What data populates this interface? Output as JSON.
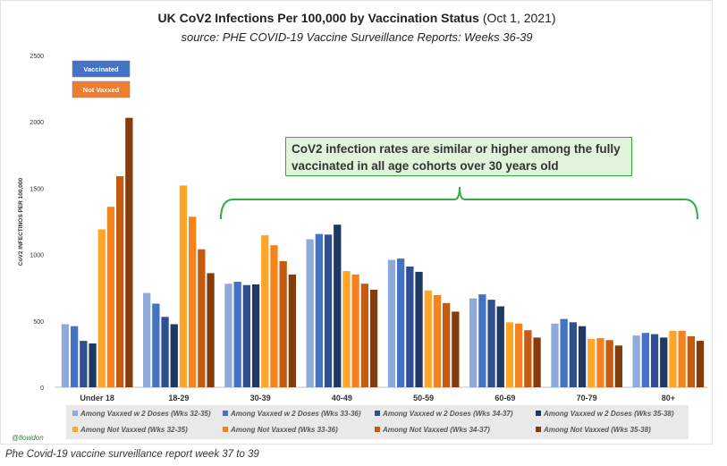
{
  "chart_data": {
    "type": "bar",
    "title": "UK CoV2 Infections Per 100,000 by Vaccination Status",
    "title_date": "(Oct 1, 2021)",
    "subtitle": "source: PHE COVID-19 Vaccine Surveillance Reports: Weeks 36-39",
    "ylabel": "CoV2 INFECTINOS PER 100,000",
    "xlabel": "",
    "ylim": [
      0,
      2500
    ],
    "yticks": [
      "0",
      "500",
      "1000",
      "1500",
      "2000",
      "2500"
    ],
    "categories": [
      "Under 18",
      "18-29",
      "30-39",
      "40-49",
      "50-59",
      "60-69",
      "70-79",
      "80+"
    ],
    "series": [
      {
        "name": "Among Vaxxed w 2 Doses (Wks 32-35)",
        "color": "#8eaadb",
        "values": [
          475,
          710,
          780,
          1115,
          960,
          670,
          480,
          390
        ]
      },
      {
        "name": "Among Vaxxed w 2 Doses (Wks 33-36)",
        "color": "#4472c4",
        "values": [
          460,
          630,
          795,
          1155,
          970,
          700,
          515,
          410
        ]
      },
      {
        "name": "Among Vaxxed w 2 Doses (Wks 34-37)",
        "color": "#2f4f8f",
        "values": [
          350,
          530,
          770,
          1150,
          910,
          660,
          490,
          400
        ]
      },
      {
        "name": "Among Vaxxed w 2 Doses (Wks 35-38)",
        "color": "#1f3864",
        "values": [
          330,
          475,
          775,
          1225,
          870,
          610,
          460,
          375
        ]
      },
      {
        "name": "Among Not Vaxxed (Wks 32-35)",
        "color": "#ffa629",
        "values": [
          1190,
          1520,
          1145,
          875,
          730,
          490,
          365,
          425
        ]
      },
      {
        "name": "Among Not Vaxxed (Wks 33-36)",
        "color": "#f5821f",
        "values": [
          1360,
          1285,
          1070,
          850,
          695,
          480,
          370,
          425
        ]
      },
      {
        "name": "Among Not Vaxxed (Wks 34-37)",
        "color": "#c55a11",
        "values": [
          1590,
          1040,
          950,
          780,
          635,
          430,
          355,
          385
        ]
      },
      {
        "name": "Among Not Vaxxed (Wks 35-38)",
        "color": "#843c0c",
        "values": [
          2030,
          860,
          850,
          735,
          570,
          375,
          315,
          350
        ]
      }
    ],
    "inset_legend": [
      {
        "label": "Vaccinated",
        "color": "#4472c4"
      },
      {
        "label": "Not Vaxxed",
        "color": "#ed7d31"
      }
    ],
    "annotation": "CoV2 infection rates are similar or higher among the fully vaccinated in all age cohorts over 30 years old"
  },
  "credit": "@tlowdon",
  "caption": "Phe Covid-19 vaccine surveillance report week 37 to 39"
}
